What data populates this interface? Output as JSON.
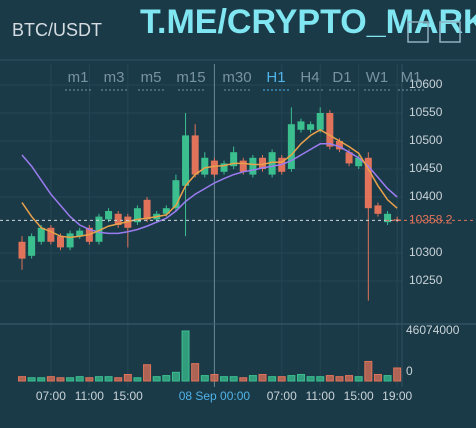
{
  "header": {
    "symbol": "BTC/USDT",
    "watermark": "T.ME/CRYPTO_MARKET"
  },
  "timeframes": [
    "m1",
    "m3",
    "m5",
    "m15",
    "m30",
    "H1",
    "H4",
    "D1",
    "W1",
    "M1"
  ],
  "active_timeframe_index": 5,
  "chart_data": {
    "type": "candlestick",
    "categories": [
      null,
      null,
      null,
      "07:00",
      null,
      null,
      null,
      "11:00",
      null,
      null,
      null,
      "15:00",
      null,
      null,
      null,
      null,
      null,
      null,
      null,
      null,
      "08 Sep 00:00",
      null,
      null,
      null,
      null,
      null,
      null,
      "07:00",
      null,
      null,
      null,
      "11:00",
      null,
      null,
      null,
      "15:00",
      null,
      null,
      null,
      "19:00"
    ],
    "highlight_index": 20,
    "open": [
      10320,
      10295,
      10320,
      10345,
      10330,
      10310,
      10330,
      10345,
      10320,
      10360,
      10370,
      10365,
      10355,
      10395,
      10360,
      10370,
      10380,
      10420,
      10510,
      10440,
      10465,
      10445,
      10455,
      10465,
      10440,
      10470,
      10440,
      10470,
      10450,
      10520,
      10520,
      10520,
      10550,
      10500,
      10480,
      10455,
      10470,
      10385,
      10355,
      10360
    ],
    "high": [
      10330,
      10335,
      10350,
      10350,
      10335,
      10340,
      10345,
      10350,
      10370,
      10380,
      10375,
      10370,
      10385,
      10400,
      10375,
      10385,
      10440,
      10550,
      10530,
      10480,
      10470,
      10465,
      10490,
      10470,
      10475,
      10475,
      10485,
      10475,
      10560,
      10540,
      10535,
      10560,
      10555,
      10505,
      10485,
      10475,
      10480,
      10390,
      10375,
      10365
    ],
    "low": [
      10270,
      10290,
      10315,
      10315,
      10305,
      10305,
      10325,
      10315,
      10315,
      10355,
      10345,
      10310,
      10350,
      10355,
      10355,
      10365,
      10375,
      10330,
      10435,
      10435,
      10435,
      10440,
      10450,
      10440,
      10435,
      10445,
      10435,
      10440,
      10445,
      10515,
      10515,
      10515,
      10485,
      10480,
      10455,
      10450,
      10215,
      10365,
      10350,
      10355
    ],
    "close": [
      10290,
      10330,
      10345,
      10320,
      10310,
      10335,
      10340,
      10320,
      10365,
      10375,
      10350,
      10345,
      10380,
      10360,
      10370,
      10380,
      10430,
      10510,
      10440,
      10470,
      10440,
      10460,
      10480,
      10445,
      10470,
      10450,
      10480,
      10445,
      10530,
      10535,
      10530,
      10550,
      10490,
      10485,
      10460,
      10470,
      10380,
      10370,
      10370,
      10358.2
    ],
    "ylim": [
      10175,
      10637.5
    ],
    "yticks": [
      10250,
      10300,
      10400,
      10450,
      10500,
      10550,
      10600
    ],
    "last_price": 10358.2,
    "up_color": "#3bbf8f",
    "down_color": "#e0735a",
    "ma_lines": [
      {
        "color": "#9b7cf0",
        "values": [
          10475,
          10455,
          10430,
          10405,
          10385,
          10365,
          10350,
          10342,
          10337,
          10335,
          10335,
          10338,
          10342,
          10348,
          10355,
          10362,
          10375,
          10392,
          10405,
          10415,
          10425,
          10433,
          10440,
          10445,
          10448,
          10452,
          10455,
          10458,
          10465,
          10475,
          10485,
          10495,
          10495,
          10490,
          10480,
          10470,
          10455,
          10435,
          10415,
          10400
        ]
      },
      {
        "color": "#e8a14a",
        "values": [
          10390,
          10365,
          10345,
          10338,
          10330,
          10328,
          10330,
          10333,
          10340,
          10348,
          10352,
          10356,
          10360,
          10362,
          10365,
          10368,
          10385,
          10420,
          10440,
          10452,
          10455,
          10456,
          10460,
          10460,
          10458,
          10458,
          10462,
          10462,
          10475,
          10495,
          10510,
          10520,
          10510,
          10500,
          10490,
          10478,
          10450,
          10420,
          10395,
          10380
        ]
      }
    ],
    "volume": {
      "values": [
        4000000,
        3000000,
        3000000,
        4000000,
        3000000,
        3000000,
        4000000,
        3000000,
        4000000,
        4000000,
        3000000,
        6000000,
        3000000,
        15000000,
        4000000,
        5000000,
        8000000,
        46074000,
        16000000,
        5000000,
        6000000,
        4000000,
        4000000,
        3000000,
        5000000,
        6000000,
        4000000,
        4000000,
        5000000,
        6000000,
        4000000,
        4000000,
        5000000,
        4000000,
        5000000,
        4000000,
        18000000,
        6000000,
        5000000,
        12000000
      ],
      "ylim": [
        0,
        51600000
      ],
      "yticks": [
        0,
        46074000
      ]
    }
  }
}
